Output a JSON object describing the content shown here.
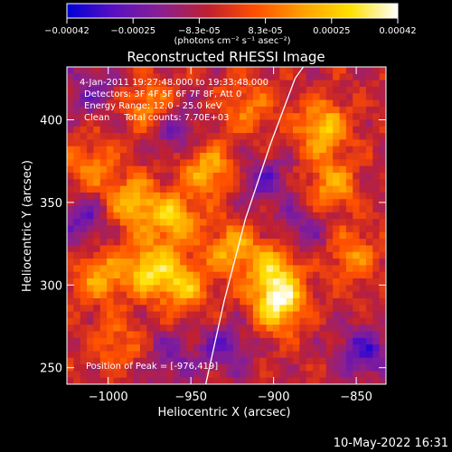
{
  "colorbar": {
    "ticks": [
      "-0.00042",
      "-0.00025",
      "-8.3e-05",
      "8.3e-05",
      "0.00025",
      "0.00042"
    ],
    "units_label": "(photons cm⁻² s⁻¹ asec⁻²)",
    "stops": [
      "#0000d8",
      "#5a10c0",
      "#8a2090",
      "#c02030",
      "#ff5000",
      "#ffa000",
      "#ffe000",
      "#ffffff"
    ]
  },
  "header": {
    "info_time": "4-Jan-2011 19:27:48.000 to 19:33:48.000",
    "info_detectors": "Detectors: 3F 4F 5F 6F 7F 8F, Att 0",
    "info_energy": "Energy Range: 12.0 - 25.0 keV",
    "info_clean": "Clean     Total counts: 7.70E+03"
  },
  "footer": {
    "peak_text": "Position of Peak = [-976,419]",
    "timestamp": "10-May-2022 16:31"
  },
  "chart_data": {
    "type": "heatmap",
    "title": "Reconstructed RHESSI Image",
    "xlabel": "Heliocentric X (arcsec)",
    "ylabel": "Heliocentric Y (arcsec)",
    "xlim": [
      -1025,
      -832
    ],
    "ylim": [
      240,
      432
    ],
    "xticks": [
      -1000,
      -950,
      -900,
      -850
    ],
    "xtick_labels": [
      "−1000",
      "−950",
      "−900",
      "−850"
    ],
    "yticks": [
      250,
      300,
      350,
      400
    ],
    "ytick_labels": [
      "250",
      "300",
      "350",
      "400"
    ],
    "value_range": [
      -0.00042,
      0.00042
    ],
    "limb_curve": [
      [
        -941,
        240
      ],
      [
        -930,
        290
      ],
      [
        -917,
        340
      ],
      [
        -902,
        385
      ],
      [
        -887,
        425
      ],
      [
        -882,
        432
      ]
    ],
    "grid_nx": 48,
    "grid_ny": 48,
    "hotspots": [
      {
        "x": -985,
        "y": 350,
        "value": 0.0003
      },
      {
        "x": -975,
        "y": 310,
        "value": 0.00033
      },
      {
        "x": -955,
        "y": 300,
        "value": 0.00028
      },
      {
        "x": -960,
        "y": 340,
        "value": 0.00029
      },
      {
        "x": -940,
        "y": 370,
        "value": 0.00027
      },
      {
        "x": -1005,
        "y": 305,
        "value": 0.00024
      },
      {
        "x": -1012,
        "y": 372,
        "value": 0.0002
      },
      {
        "x": -975,
        "y": 408,
        "value": 0.00024
      },
      {
        "x": -925,
        "y": 322,
        "value": 0.00026
      },
      {
        "x": -897,
        "y": 288,
        "value": 0.0004
      },
      {
        "x": -900,
        "y": 308,
        "value": 0.0003
      },
      {
        "x": -870,
        "y": 395,
        "value": 0.00032
      },
      {
        "x": -865,
        "y": 360,
        "value": 0.00025
      },
      {
        "x": -852,
        "y": 318,
        "value": 0.0002
      },
      {
        "x": -995,
        "y": 265,
        "value": 0.00016
      },
      {
        "x": -915,
        "y": 408,
        "value": 0.00018
      }
    ],
    "coldspots": [
      {
        "x": -1015,
        "y": 340,
        "value": -0.0002
      },
      {
        "x": -960,
        "y": 395,
        "value": -0.0002
      },
      {
        "x": -930,
        "y": 262,
        "value": -0.00018
      },
      {
        "x": -845,
        "y": 260,
        "value": -0.00024
      },
      {
        "x": -905,
        "y": 362,
        "value": -0.00018
      },
      {
        "x": -1010,
        "y": 418,
        "value": -0.00016
      },
      {
        "x": -962,
        "y": 255,
        "value": -0.00014
      },
      {
        "x": -880,
        "y": 335,
        "value": -0.00014
      }
    ],
    "peak": {
      "x": -976,
      "y": 419
    }
  }
}
